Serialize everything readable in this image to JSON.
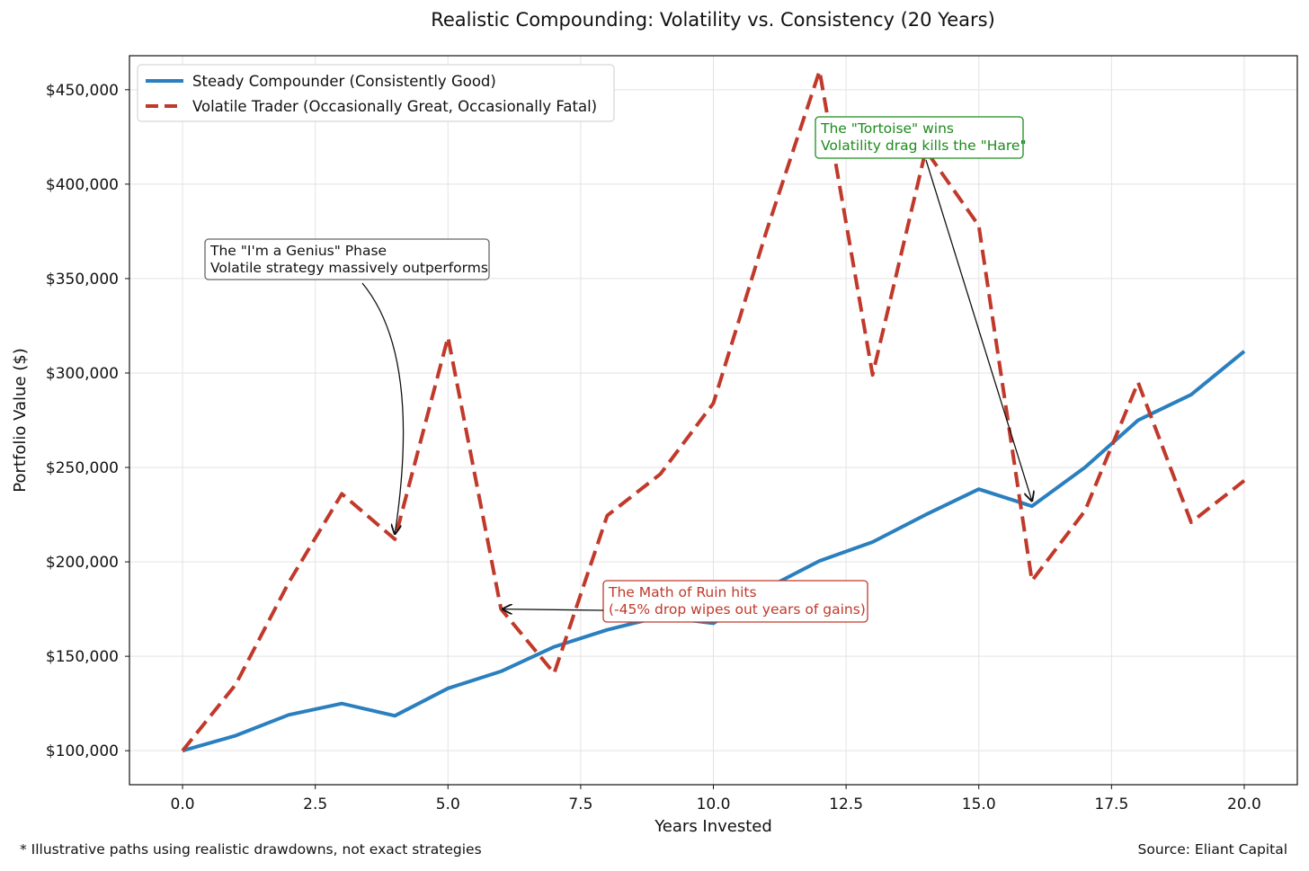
{
  "chart_data": {
    "type": "line",
    "title": "Realistic Compounding: Volatility vs. Consistency (20 Years)",
    "xlabel": "Years Invested",
    "ylabel": "Portfolio Value ($)",
    "xlim": [
      -1,
      21
    ],
    "ylim": [
      82000,
      468000
    ],
    "x_ticks": [
      0,
      2.5,
      5,
      7.5,
      10,
      12.5,
      15,
      17.5,
      20
    ],
    "x_tick_labels": [
      "0.0",
      "2.5",
      "5.0",
      "7.5",
      "10.0",
      "12.5",
      "15.0",
      "17.5",
      "20.0"
    ],
    "y_ticks": [
      100000,
      150000,
      200000,
      250000,
      300000,
      350000,
      400000,
      450000
    ],
    "y_tick_labels": [
      "$100,000",
      "$150,000",
      "$200,000",
      "$250,000",
      "$300,000",
      "$350,000",
      "$400,000",
      "$450,000"
    ],
    "grid": true,
    "legend_position": "top-left",
    "x": [
      0,
      1,
      2,
      3,
      4,
      5,
      6,
      7,
      8,
      9,
      10,
      11,
      12,
      13,
      14,
      15,
      16,
      17,
      18,
      19,
      20
    ],
    "series": [
      {
        "name": "Steady Compounder (Consistently Good)",
        "color": "#2a7fbf",
        "style": "solid",
        "values": [
          100000,
          108000,
          119000,
          125000,
          118500,
          133000,
          142000,
          155000,
          164000,
          171000,
          167500,
          186000,
          200500,
          210500,
          225000,
          238500,
          229500,
          250000,
          275000,
          288500,
          311500
        ]
      },
      {
        "name": "Volatile Trader (Occasionally Great, Occasionally Fatal)",
        "color": "#c0392b",
        "style": "dashed",
        "values": [
          100000,
          135000,
          189000,
          236000,
          212000,
          319000,
          175000,
          141000,
          224500,
          246500,
          284000,
          375000,
          460000,
          299000,
          418000,
          378000,
          190000,
          227000,
          295000,
          221000,
          243000
        ]
      }
    ],
    "annotations": [
      {
        "id": "genius",
        "lines": [
          "The \"I'm a Genius\" Phase",
          "Volatile strategy massively outperforms"
        ],
        "color": "#111111",
        "border": "#666666",
        "point": [
          4,
          212000
        ]
      },
      {
        "id": "ruin",
        "lines": [
          "The Math of Ruin hits",
          "(-45% drop wipes out years of gains)"
        ],
        "color": "#c0392b",
        "border": "#c0392b",
        "point": [
          6,
          175000
        ]
      },
      {
        "id": "tortoise",
        "lines": [
          "The \"Tortoise\" wins",
          "Volatility drag kills the \"Hare\""
        ],
        "color": "#1e8a1e",
        "border": "#1e8a1e",
        "point": [
          16,
          229500
        ]
      }
    ]
  },
  "footer": {
    "note": "* Illustrative paths using realistic drawdowns, not exact strategies",
    "source": "Source: Eliant Capital"
  }
}
